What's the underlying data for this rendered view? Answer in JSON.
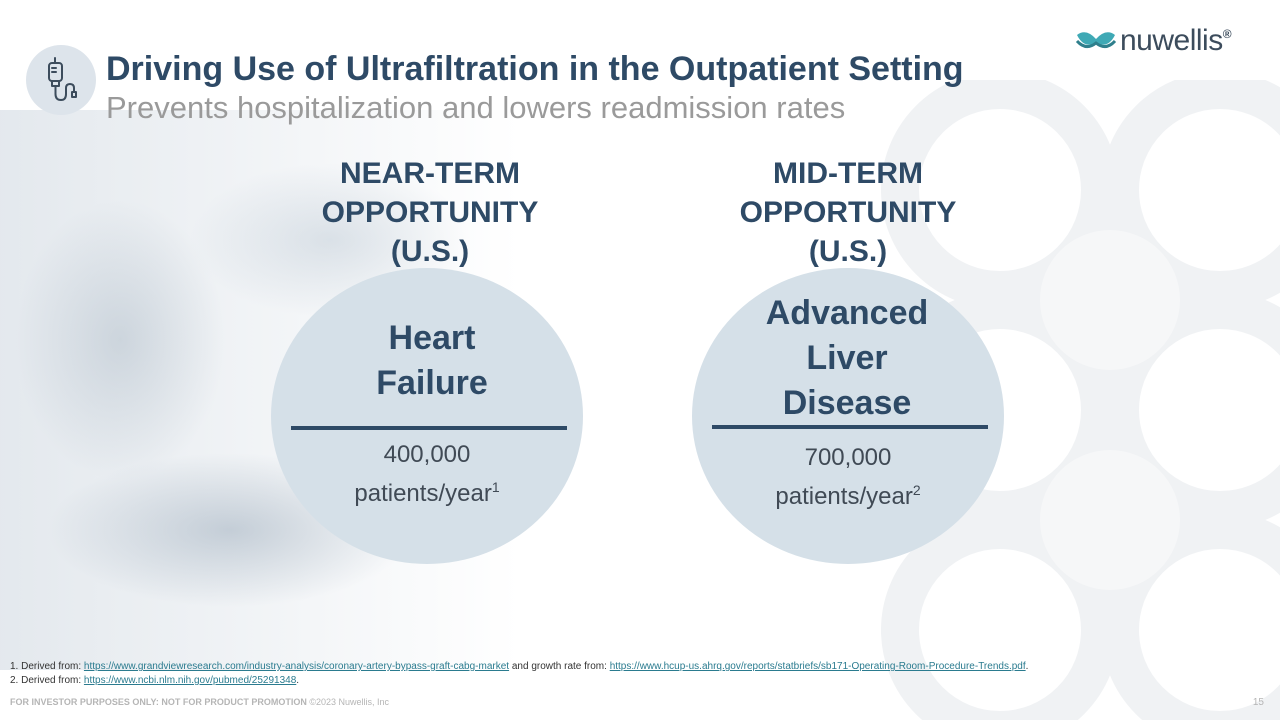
{
  "header": {
    "title": "Driving Use of Ultrafiltration in the Outpatient Setting",
    "subtitle": "Prevents hospitalization and lowers readmission rates",
    "title_icon": "iv-bag-icon"
  },
  "logo": {
    "text": "nuwellis",
    "registered": "®"
  },
  "columns": [
    {
      "heading": [
        "NEAR-TERM",
        "OPPORTUNITY",
        "(U.S.)"
      ],
      "condition": [
        "Heart",
        "Failure"
      ],
      "value": "400,000",
      "unit": "patients/year",
      "footnote_ref": "1"
    },
    {
      "heading": [
        "MID-TERM",
        "OPPORTUNITY",
        "(U.S.)"
      ],
      "condition": [
        "Advanced",
        "Liver",
        "Disease"
      ],
      "value": "700,000",
      "unit": "patients/year",
      "footnote_ref": "2"
    }
  ],
  "footnotes": {
    "f1_prefix": "1. Derived from: ",
    "f1_link1": "https://www.grandviewresearch.com/industry-analysis/coronary-artery-bypass-graft-cabg-market",
    "f1_middle": " and growth rate from: ",
    "f1_link2": "https://www.hcup-us.ahrq.gov/reports/statbriefs/sb171-Operating-Room-Procedure-Trends.pdf",
    "f1_suffix": ".",
    "f2_prefix": "2. Derived from: ",
    "f2_link": "https://www.ncbi.nlm.nih.gov/pubmed/25291348",
    "f2_suffix": "."
  },
  "footer": {
    "disclaimer": "FOR INVESTOR PURPOSES ONLY: NOT FOR PRODUCT PROMOTION",
    "copyright": " ©2023 Nuwellis, Inc",
    "page_number": "15"
  },
  "colors": {
    "accent": "#2e4a66",
    "circle_fill": "#d5e0e8",
    "subtitle_gray": "#9a9a9a",
    "logo_teal": "#3fa9b5",
    "link": "#2a7b8f"
  }
}
